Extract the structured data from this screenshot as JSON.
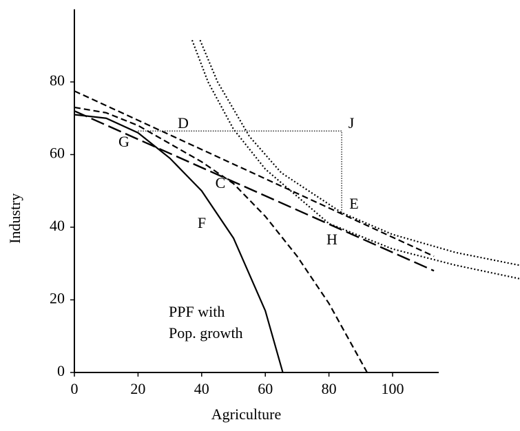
{
  "chart_data": {
    "type": "line",
    "xlabel": "Agriculture",
    "ylabel": "Industry",
    "xlim": [
      0,
      114.5
    ],
    "ylim": [
      0,
      100
    ],
    "xticks": [
      0,
      20,
      40,
      60,
      80,
      100
    ],
    "yticks": [
      0,
      20,
      40,
      60,
      80
    ],
    "grid": false,
    "series": [
      {
        "color": "#000000",
        "dash": "solid",
        "x": [
          0,
          10,
          20,
          30,
          40,
          50,
          60,
          65.5
        ],
        "values": [
          71,
          70,
          66,
          59,
          50,
          37,
          17,
          0
        ]
      },
      {
        "color": "#000000",
        "dash": "dashed",
        "x": [
          0,
          10,
          20,
          30,
          40,
          50,
          60,
          70,
          80,
          92
        ],
        "values": [
          73,
          71.5,
          68,
          63,
          58,
          52,
          43,
          32,
          19,
          0
        ]
      },
      {
        "color": "#000000",
        "dash": "dashed",
        "x": [
          0,
          113
        ],
        "values": [
          77.5,
          32
        ]
      },
      {
        "color": "#000000",
        "dash": "longdash",
        "x": [
          0,
          113
        ],
        "values": [
          72,
          28
        ]
      },
      {
        "color": "#000000",
        "dash": "dotted",
        "x": [
          39.5,
          45,
          55,
          65,
          84,
          100,
          120,
          140
        ],
        "values": [
          91.5,
          80,
          65,
          55,
          44,
          38,
          33,
          29.5
        ]
      },
      {
        "color": "#000000",
        "dash": "dotted",
        "x": [
          37,
          42,
          50,
          60,
          80,
          100,
          120,
          140
        ],
        "values": [
          91.5,
          80,
          67,
          56,
          41,
          34,
          29.5,
          25.8
        ]
      },
      {
        "color": "#000000",
        "dash": "fine",
        "x": [
          20,
          84,
          84
        ],
        "values": [
          66.5,
          66.5,
          44
        ]
      }
    ],
    "annotations": [
      "D",
      "J",
      "G",
      "C",
      "E",
      "F",
      "H",
      "PPF with",
      "Pop. growth"
    ]
  }
}
